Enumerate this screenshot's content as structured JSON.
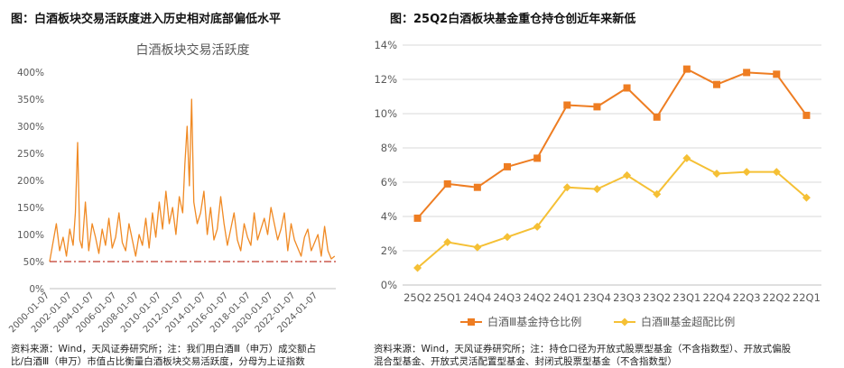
{
  "left": {
    "figure_title": "图：白酒板块交易活跃度进入历史相对底部偏低水平",
    "source_line1": "资料来源：Wind，天风证券研究所；注：我们用白酒Ⅲ（申万）成交额占",
    "source_line2": "比/白酒Ⅲ（申万）市值占比衡量白酒板块交易活跃度，分母为上证指数"
  },
  "right": {
    "figure_title": "图：25Q2白酒板块基金重仓持仓创近年来新低",
    "source_line1": "资料来源：Wind，天风证券研究所；注：持仓口径为开放式股票型基金（不含指数型）、开放式偏股",
    "source_line2": "混合型基金、开放式灵活配置型基金、封闭式股票型基金（不含指数型）"
  },
  "colors": {
    "activity_line": "#F08A24",
    "ref_line": "#C0392B",
    "holding_line": "#EE7D22",
    "overweight_line": "#F5C035",
    "grid": "#D9D9D9",
    "axis_text": "#595959"
  },
  "chart_data": [
    {
      "type": "line",
      "title": "白酒板块交易活跃度",
      "x_tick_labels": [
        "2000-01-07",
        "2002-01-07",
        "2004-01-07",
        "2006-01-07",
        "2008-01-07",
        "2010-01-07",
        "2012-01-07",
        "2014-01-07",
        "2016-01-07",
        "2018-01-07",
        "2020-01-07",
        "2022-01-07",
        "2024-01-07"
      ],
      "y_tick_labels": [
        "0%",
        "50%",
        "100%",
        "150%",
        "200%",
        "250%",
        "300%",
        "350%",
        "400%"
      ],
      "ylim": [
        0,
        400
      ],
      "xlim": [
        2000.0,
        2025.6
      ],
      "grid": false,
      "reference_line": {
        "y": 50,
        "style": "dash-dot"
      },
      "series": [
        {
          "x": [
            2000.0,
            2000.3,
            2000.6,
            2000.9,
            2001.2,
            2001.5,
            2001.8,
            2002.1,
            2002.3,
            2002.5,
            2002.7,
            2002.9,
            2003.2,
            2003.5,
            2003.8,
            2004.1,
            2004.4,
            2004.7,
            2005.0,
            2005.3,
            2005.6,
            2005.9,
            2006.2,
            2006.5,
            2006.8,
            2007.1,
            2007.4,
            2007.7,
            2008.0,
            2008.3,
            2008.6,
            2008.9,
            2009.2,
            2009.5,
            2009.8,
            2010.1,
            2010.4,
            2010.7,
            2011.0,
            2011.3,
            2011.6,
            2011.9,
            2012.1,
            2012.3,
            2012.5,
            2012.7,
            2012.9,
            2013.2,
            2013.5,
            2013.8,
            2014.1,
            2014.4,
            2014.7,
            2015.0,
            2015.3,
            2015.6,
            2015.9,
            2016.2,
            2016.5,
            2016.8,
            2017.1,
            2017.4,
            2017.7,
            2018.0,
            2018.3,
            2018.6,
            2018.9,
            2019.2,
            2019.5,
            2019.8,
            2020.1,
            2020.4,
            2020.7,
            2021.0,
            2021.3,
            2021.6,
            2021.9,
            2022.2,
            2022.5,
            2022.8,
            2023.1,
            2023.4,
            2023.7,
            2024.0,
            2024.3,
            2024.6,
            2024.9,
            2025.2,
            2025.5
          ],
          "y": [
            50,
            85,
            120,
            70,
            95,
            60,
            110,
            80,
            140,
            270,
            90,
            75,
            160,
            70,
            120,
            95,
            65,
            110,
            80,
            130,
            75,
            95,
            140,
            85,
            70,
            120,
            90,
            60,
            100,
            80,
            130,
            75,
            140,
            95,
            160,
            110,
            180,
            120,
            150,
            100,
            170,
            140,
            230,
            300,
            190,
            350,
            160,
            120,
            140,
            180,
            100,
            150,
            90,
            110,
            170,
            120,
            80,
            110,
            140,
            90,
            70,
            120,
            95,
            80,
            140,
            90,
            110,
            130,
            100,
            150,
            120,
            90,
            110,
            140,
            70,
            120,
            90,
            75,
            60,
            95,
            110,
            70,
            85,
            100,
            60,
            115,
            70,
            55,
            60
          ]
        }
      ]
    },
    {
      "type": "line",
      "categories": [
        "25Q2",
        "25Q1",
        "24Q4",
        "24Q3",
        "24Q2",
        "24Q1",
        "23Q4",
        "23Q3",
        "23Q2",
        "23Q1",
        "22Q4",
        "22Q3",
        "22Q2",
        "22Q1"
      ],
      "y_tick_labels": [
        "0%",
        "2%",
        "4%",
        "6%",
        "8%",
        "10%",
        "12%",
        "14%"
      ],
      "ylim": [
        0,
        14
      ],
      "grid": true,
      "legend_position": "bottom",
      "series": [
        {
          "name": "白酒Ⅲ基金持仓比例",
          "marker": "square",
          "values": [
            3.9,
            5.9,
            5.7,
            6.9,
            7.4,
            10.5,
            10.4,
            11.5,
            9.8,
            12.6,
            11.7,
            12.4,
            12.3,
            9.9
          ]
        },
        {
          "name": "白酒Ⅲ基金超配比例",
          "marker": "diamond",
          "values": [
            1.0,
            2.5,
            2.2,
            2.8,
            3.4,
            5.7,
            5.6,
            6.4,
            5.3,
            7.4,
            6.5,
            6.6,
            6.6,
            5.1
          ]
        }
      ]
    }
  ]
}
